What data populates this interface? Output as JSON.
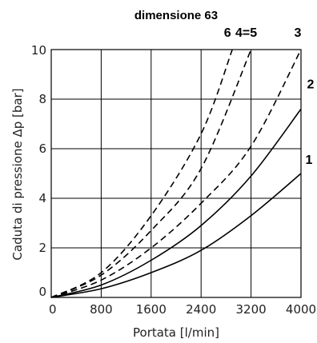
{
  "chart_data": {
    "type": "line",
    "title": "dimensione 63",
    "xlabel": "Portata [l/min]",
    "ylabel": "Caduta di pressione Δp [bar]",
    "xlim": [
      0,
      4000
    ],
    "ylim": [
      0,
      10
    ],
    "x_ticks": [
      "0",
      "800",
      "1600",
      "2400",
      "3200",
      "4000"
    ],
    "y_ticks": [
      "0",
      "2",
      "4",
      "6",
      "8",
      "10"
    ],
    "grid": true,
    "series": [
      {
        "name": "1",
        "style": "solid",
        "x": [
          0,
          800,
          1600,
          2400,
          3200,
          4000
        ],
        "values": [
          0,
          0.35,
          1.0,
          1.9,
          3.3,
          5.0
        ]
      },
      {
        "name": "2",
        "style": "solid",
        "x": [
          0,
          800,
          1600,
          2400,
          3200,
          4000
        ],
        "values": [
          0,
          0.5,
          1.5,
          2.9,
          4.9,
          7.6
        ]
      },
      {
        "name": "3",
        "style": "dashed",
        "x": [
          0,
          800,
          1600,
          2400,
          3200,
          4000
        ],
        "values": [
          0,
          0.7,
          2.0,
          3.8,
          6.1,
          10.0
        ]
      },
      {
        "name": "4=5",
        "style": "dashed",
        "x": [
          0,
          800,
          1600,
          2400,
          3200
        ],
        "values": [
          0,
          0.9,
          2.7,
          5.2,
          10.0
        ]
      },
      {
        "name": "6",
        "style": "dashed",
        "x": [
          0,
          800,
          1600,
          2400,
          2900
        ],
        "values": [
          0,
          1.0,
          3.3,
          6.6,
          10.0
        ]
      }
    ]
  }
}
